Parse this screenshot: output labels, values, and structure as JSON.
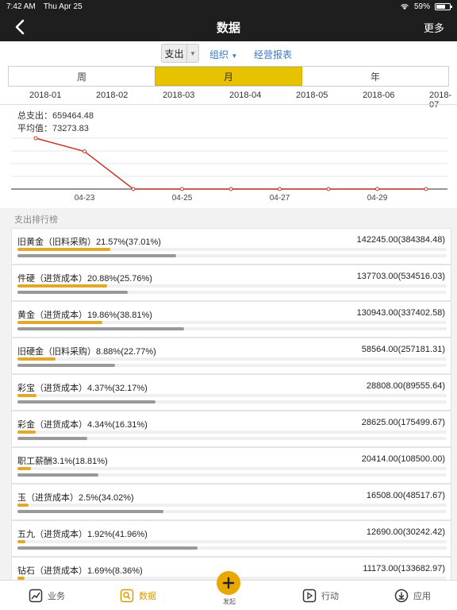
{
  "status": {
    "time": "7:42 AM",
    "date": "Thu Apr 25",
    "battery": "59%",
    "battery_level": 0.59
  },
  "nav": {
    "title": "数据",
    "more": "更多"
  },
  "filters": {
    "type": "支出",
    "org": "组织",
    "report": "经营报表"
  },
  "segments": [
    "周",
    "月",
    "年"
  ],
  "months": [
    "2018-01",
    "2018-02",
    "2018-03",
    "2018-04",
    "2018-05",
    "2018-06",
    "2018-07"
  ],
  "summary": {
    "total": "总支出：659464.48",
    "average": "平均值：73273.83"
  },
  "chart_data": {
    "type": "line",
    "x": [
      "04-22",
      "04-23",
      "04-24",
      "04-25",
      "04-26",
      "04-27",
      "04-28",
      "04-29",
      "04-30"
    ],
    "tick_labels": [
      "04-23",
      "04-25",
      "04-27",
      "04-29"
    ],
    "series": [
      {
        "values": [
          1,
          0.74,
          0,
          0,
          0,
          0,
          0,
          0,
          0
        ]
      }
    ],
    "grid": true,
    "color": "#c0392b"
  },
  "ranking": {
    "title": "支出排行榜",
    "items": [
      {
        "name": "旧黄金（旧料采购）21.57%(37.01%)",
        "value": "142245.00(384384.48)",
        "pct1": 21.57,
        "pct2": 37.01
      },
      {
        "name": "件硬（进货成本）20.88%(25.76%)",
        "value": "137703.00(534516.03)",
        "pct1": 20.88,
        "pct2": 25.76
      },
      {
        "name": "黄金（进货成本）19.86%(38.81%)",
        "value": "130943.00(337402.58)",
        "pct1": 19.86,
        "pct2": 38.81
      },
      {
        "name": "旧硬金（旧料采购）8.88%(22.77%)",
        "value": "58564.00(257181.31)",
        "pct1": 8.88,
        "pct2": 22.77
      },
      {
        "name": "彩宝（进货成本）4.37%(32.17%)",
        "value": "28808.00(89555.64)",
        "pct1": 4.37,
        "pct2": 32.17
      },
      {
        "name": "彩金（进货成本）4.34%(16.31%)",
        "value": "28625.00(175499.67)",
        "pct1": 4.34,
        "pct2": 16.31
      },
      {
        "name": "职工薪酬3.1%(18.81%)",
        "value": "20414.00(108500.00)",
        "pct1": 3.1,
        "pct2": 18.81
      },
      {
        "name": "玉（进货成本）2.5%(34.02%)",
        "value": "16508.00(48517.67)",
        "pct1": 2.5,
        "pct2": 34.02
      },
      {
        "name": "五九（进货成本）1.92%(41.96%)",
        "value": "12690.00(30242.42)",
        "pct1": 1.92,
        "pct2": 41.96
      },
      {
        "name": "钻石（进货成本）1.69%(8.36%)",
        "value": "11173.00(133682.97)",
        "pct1": 1.69,
        "pct2": 8.36
      }
    ],
    "colors": {
      "primary": "#e0a92a",
      "secondary": "#999999"
    }
  },
  "tabbar": {
    "business": "业务",
    "data": "数据",
    "launch": "发起",
    "action": "行动",
    "apps": "应用"
  }
}
